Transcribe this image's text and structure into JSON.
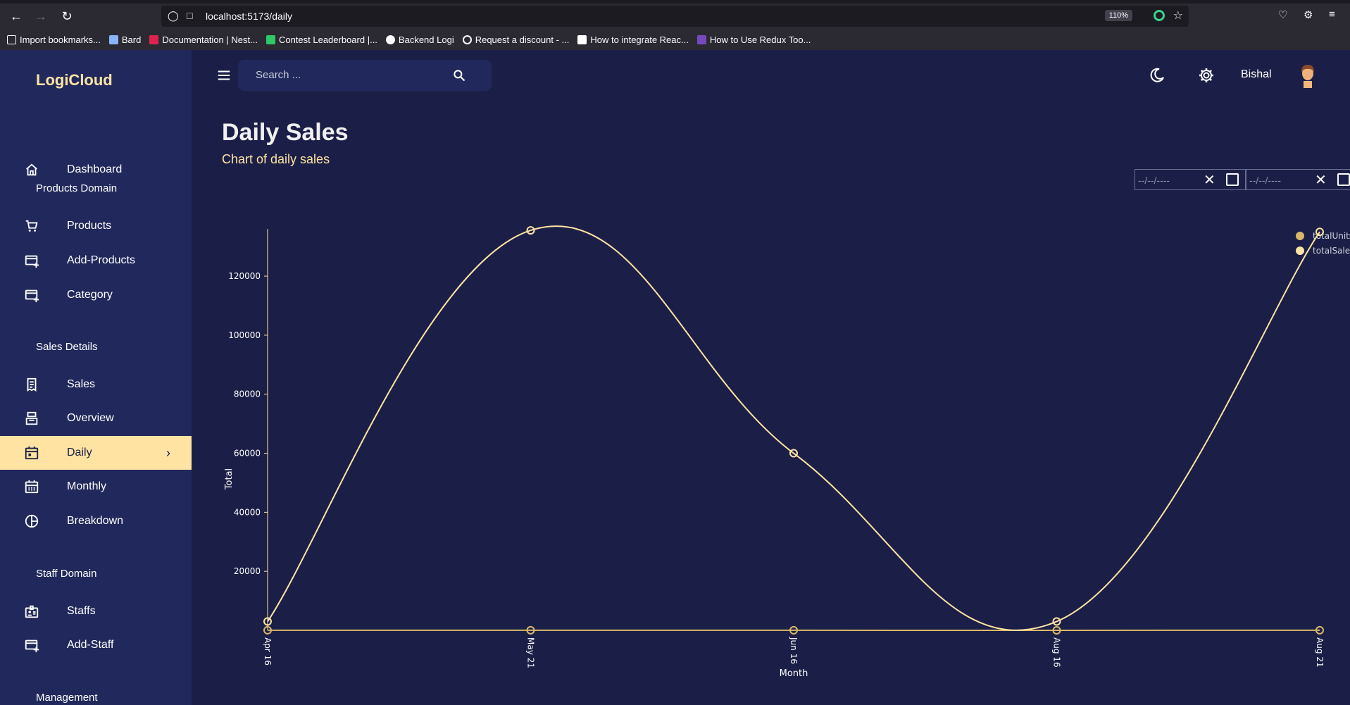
{
  "browser": {
    "url_host": "localhost",
    "url_path": ":5173/daily",
    "zoom": "110%",
    "bookmarks": [
      {
        "label": "Import bookmarks...",
        "color": "#2b2a33"
      },
      {
        "label": "Bard",
        "color": "#8ab4f8"
      },
      {
        "label": "Documentation | Nest...",
        "color": "#e0234e"
      },
      {
        "label": "Contest Leaderboard |...",
        "color": "#2ec866"
      },
      {
        "label": "Backend Logi",
        "color": "#fbfbfe"
      },
      {
        "label": "Request a discount - ...",
        "color": "#fbfbfe"
      },
      {
        "label": "How to integrate Reac...",
        "color": "#ffffff"
      },
      {
        "label": "How to Use Redux Too...",
        "color": "#764abc"
      }
    ]
  },
  "sidebar": {
    "logo": "LogiCloud",
    "sections": {
      "products": "Products Domain",
      "sales": "Sales Details",
      "staff": "Staff Domain",
      "management": "Management"
    },
    "items": {
      "dashboard": "Dashboard",
      "products": "Products",
      "add_products": "Add-Products",
      "category": "Category",
      "sales": "Sales",
      "overview": "Overview",
      "daily": "Daily",
      "monthly": "Monthly",
      "breakdown": "Breakdown",
      "staffs": "Staffs",
      "add_staff": "Add-Staff"
    },
    "active_item": "Daily"
  },
  "header": {
    "search_placeholder": "Search ...",
    "username": "Bishal"
  },
  "page": {
    "title": "Daily Sales",
    "subtitle": "Chart of daily sales",
    "start_date": "--/--/----",
    "end_date": "--/--/----"
  },
  "colors": {
    "background": "#1b1f47",
    "sidebar": "#21295c",
    "accent": "#ffe3a3",
    "line_sales": "#ffe3a3",
    "line_units": "#d9b86a"
  },
  "chart_data": {
    "type": "line",
    "x": [
      "Apr 16",
      "May 21",
      "Jun 16",
      "Aug 16",
      "Aug 21"
    ],
    "xlabel": "Month",
    "ylabel": "Total",
    "yticks": [
      20000,
      40000,
      60000,
      80000,
      100000,
      120000
    ],
    "ylim": [
      0,
      136000
    ],
    "series": [
      {
        "name": "totalUnits",
        "values": [
          30,
          35,
          20,
          10,
          40
        ],
        "color": "#d9b86a"
      },
      {
        "name": "totalSales",
        "values": [
          3000,
          135500,
          60000,
          3000,
          135000
        ],
        "color": "#ffe3a3"
      }
    ],
    "legend_position": "top-right",
    "grid": false
  }
}
